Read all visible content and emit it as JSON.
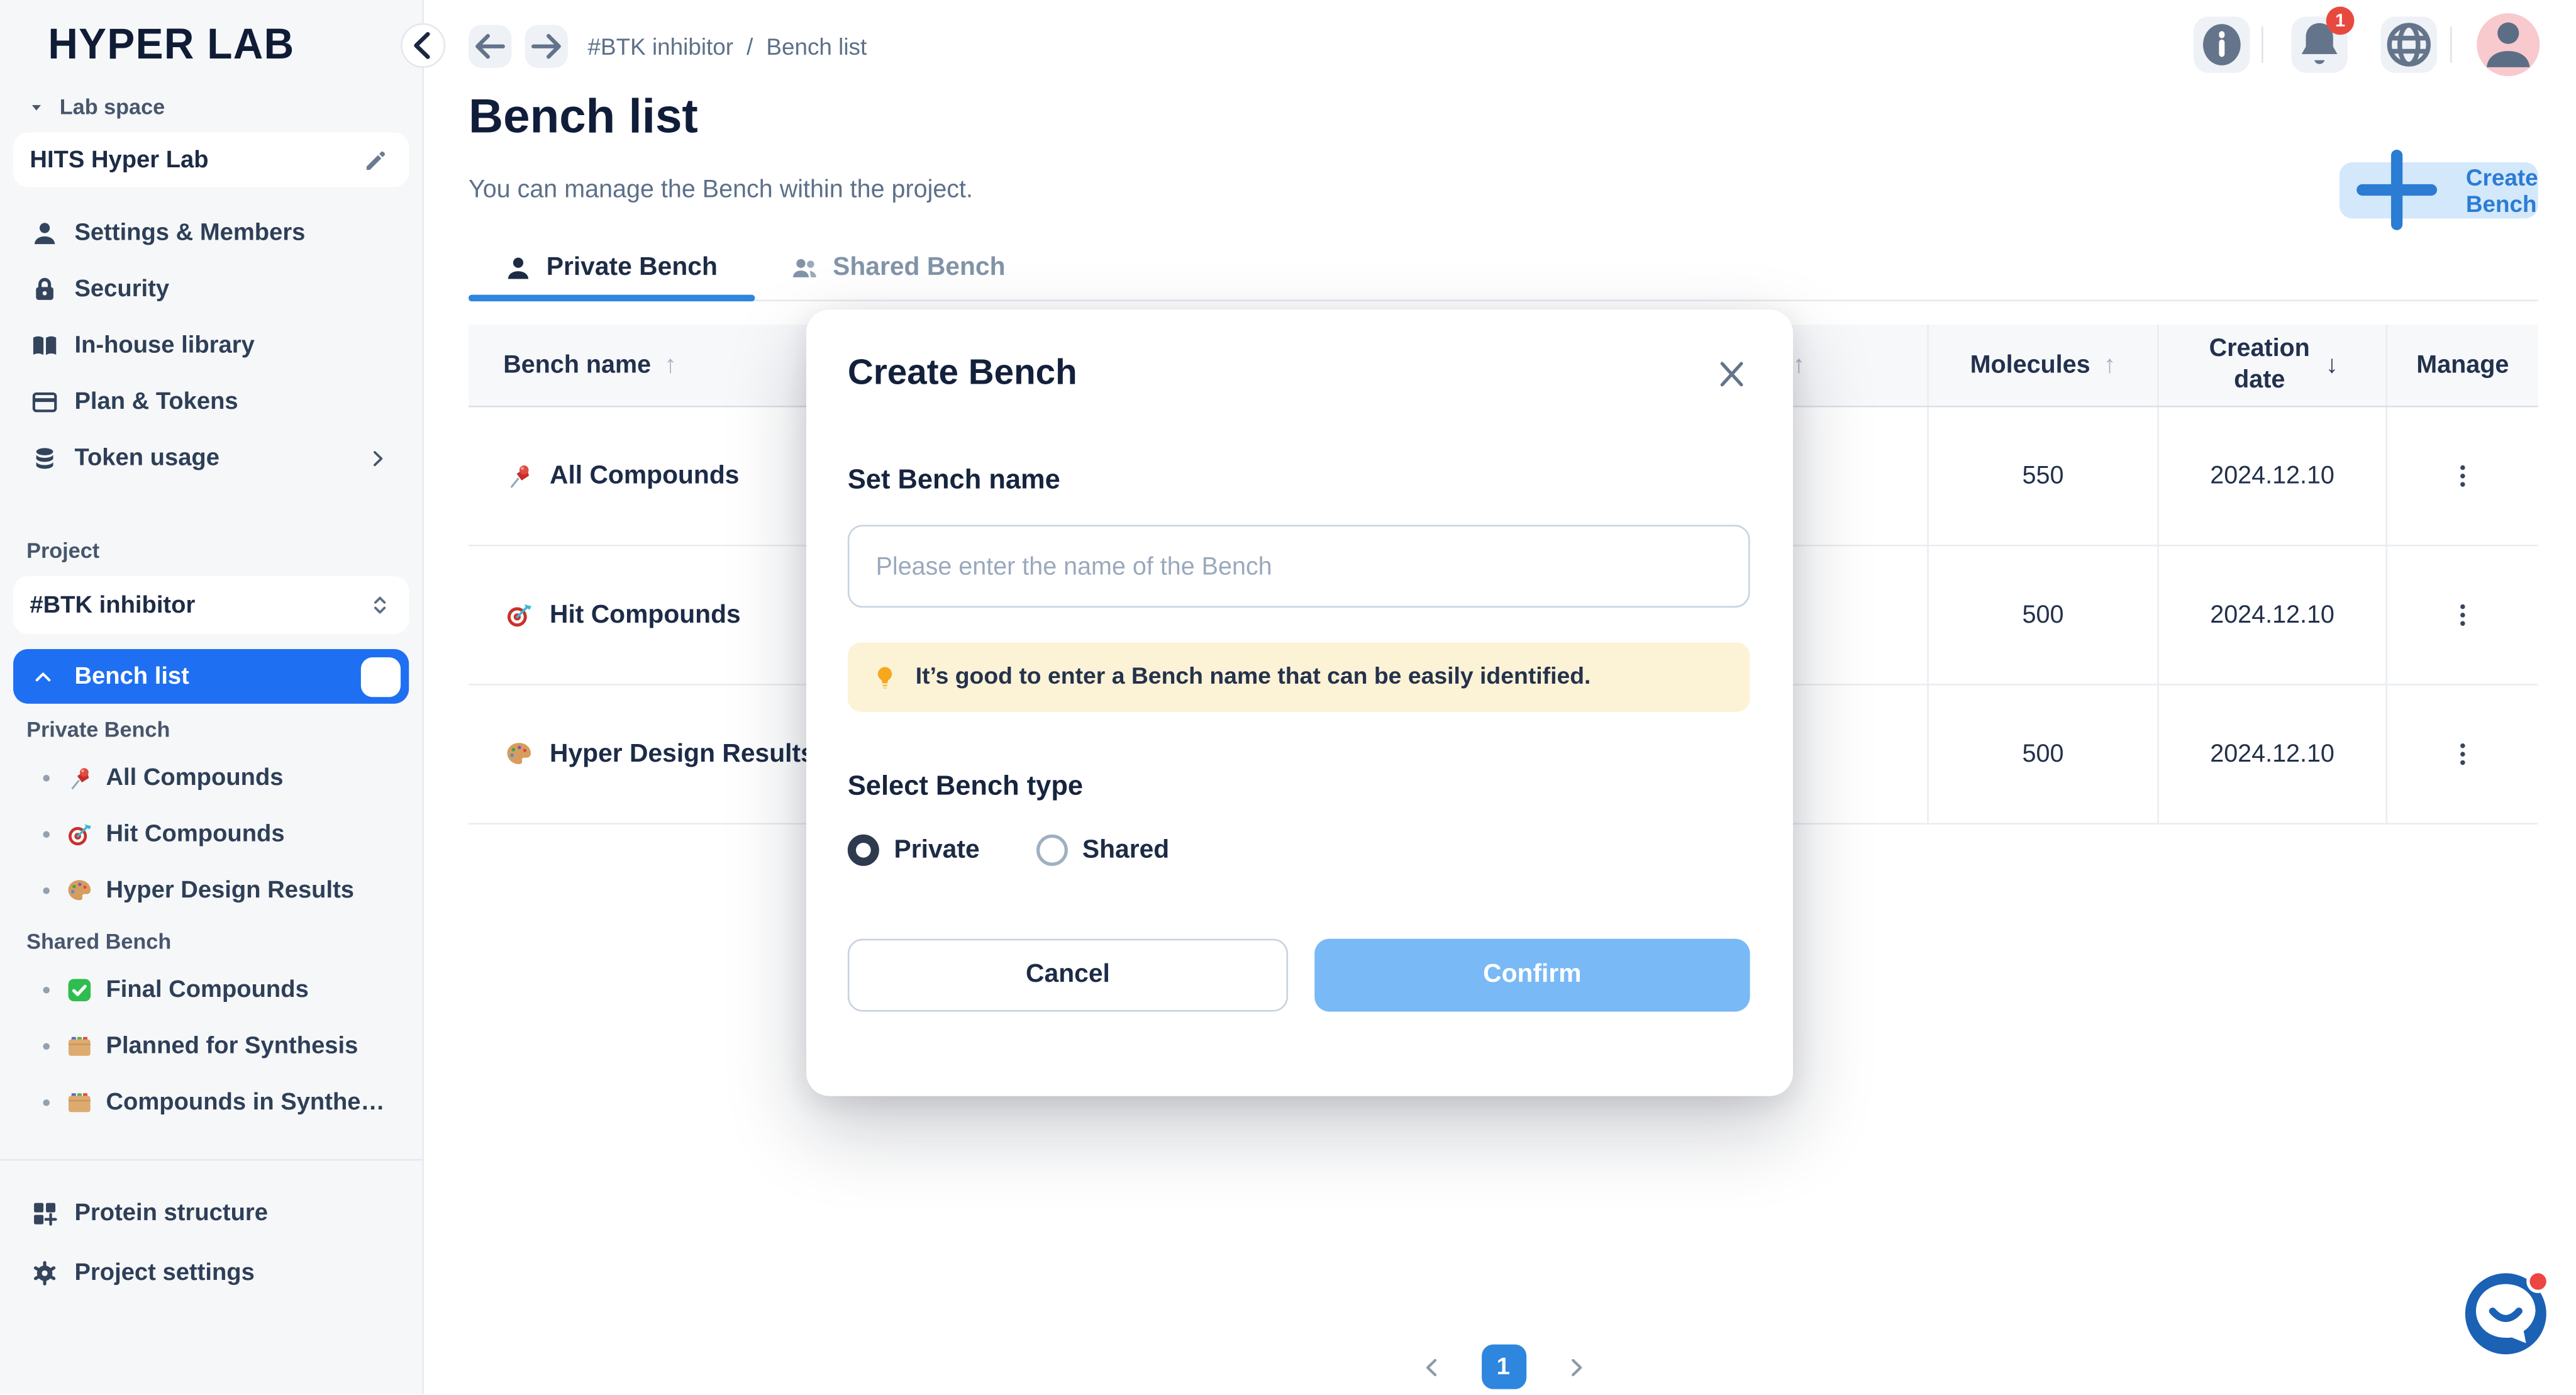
{
  "app": {
    "logo": "HYPER LAB"
  },
  "sidebar": {
    "lab_space_label": "Lab space",
    "lab_space_name": "HITS Hyper Lab",
    "menu": [
      {
        "label": "Settings & Members",
        "icon": "user"
      },
      {
        "label": "Security",
        "icon": "lock"
      },
      {
        "label": "In-house library",
        "icon": "book"
      },
      {
        "label": "Plan & Tokens",
        "icon": "card"
      },
      {
        "label": "Token usage",
        "icon": "coins",
        "chevron": "chevron-right"
      }
    ],
    "project_label": "Project",
    "project_name": "#BTK inhibitor",
    "bench_list_label": "Bench list",
    "groups": [
      {
        "label": "Private Bench",
        "items": [
          {
            "label": "All Compounds",
            "icon": "pushpin"
          },
          {
            "label": "Hit Compounds",
            "icon": "target"
          },
          {
            "label": "Hyper Design Results",
            "icon": "palette"
          }
        ]
      },
      {
        "label": "Shared Bench",
        "items": [
          {
            "label": "Final Compounds",
            "icon": "check"
          },
          {
            "label": "Planned for Synthesis",
            "icon": "folder"
          },
          {
            "label": "Compounds in Synthe…",
            "icon": "folder"
          }
        ]
      }
    ],
    "footer": [
      {
        "label": "Protein structure",
        "icon": "grid-plus"
      },
      {
        "label": "Project settings",
        "icon": "gear"
      }
    ]
  },
  "topbar": {
    "breadcrumb_project": "#BTK inhibitor",
    "breadcrumb_separator": "/",
    "breadcrumb_page": "Bench list",
    "notification_count": "1",
    "buttons": [
      {
        "icon": "info"
      },
      {
        "icon": "bell"
      },
      {
        "icon": "globe"
      }
    ]
  },
  "page": {
    "title": "Bench list",
    "subtitle": "You can manage the Bench within the project.",
    "create_button_label": "Create Bench",
    "tabs": [
      {
        "label": "Private Bench",
        "icon": "user",
        "active": true
      },
      {
        "label": "Shared Bench",
        "icon": "users",
        "active": false
      }
    ]
  },
  "table": {
    "columns": [
      {
        "label": "Bench name",
        "sort_icon": "↑",
        "sort_active": false
      },
      {
        "label": "",
        "sort_icon": "↑",
        "sort_active": false
      },
      {
        "label": "Molecules",
        "sort_icon": "↑",
        "sort_active": false
      },
      {
        "label": "Creation date",
        "sort_icon": "↓",
        "sort_active": true
      },
      {
        "label": "Manage",
        "sort_icon": ""
      }
    ],
    "row_action_icon": "kebab",
    "rows": [
      {
        "name": "All Compounds",
        "icon": "pushpin",
        "molecules": "550",
        "creation_date": "2024.12.10"
      },
      {
        "name": "Hit Compounds",
        "icon": "target",
        "molecules": "500",
        "creation_date": "2024.12.10"
      },
      {
        "name": "Hyper Design Results",
        "icon": "palette",
        "molecules": "500",
        "creation_date": "2024.12.10"
      }
    ]
  },
  "pagination": {
    "current_page": "1"
  },
  "modal": {
    "title": "Create Bench",
    "name_section_label": "Set Bench name",
    "name_placeholder": "Please enter the name of the Bench",
    "tip_icon": "bulb",
    "tip_text": "It’s good to enter a Bench name that can be easily identified.",
    "type_section_label": "Select Bench type",
    "options": [
      {
        "label": "Private",
        "selected": true
      },
      {
        "label": "Shared",
        "selected": false
      }
    ],
    "cancel_label": "Cancel",
    "confirm_label": "Confirm"
  },
  "colors": {
    "accent_blue": "#1e6ff2",
    "tab_blue": "#2e86de",
    "create_btn_bg": "#d4e8fb",
    "create_btn_text": "#2b7cd3",
    "confirm_bg": "#78b9f6",
    "tip_bg": "#fcf3d7",
    "badge_red": "#e8493f",
    "chat_bg": "#1b61b4",
    "sidebar_bg": "#f6f7f9"
  }
}
